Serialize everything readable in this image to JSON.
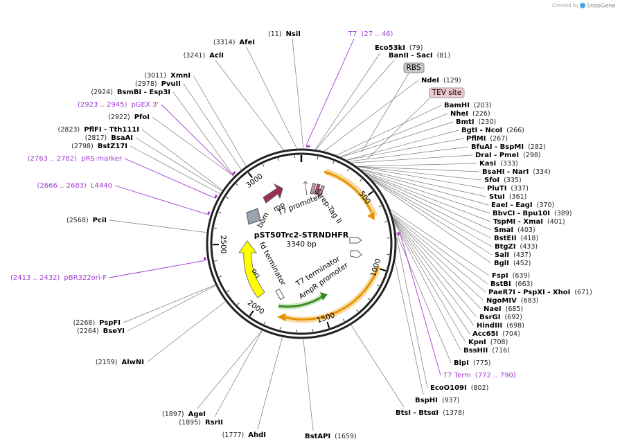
{
  "watermark": {
    "prefix": "Created by",
    "brand": "SnapGene"
  },
  "map": {
    "name": "pST50Trc2-STRNDHFR",
    "size_label": "3340 bp",
    "length": 3340,
    "ring_ticks": [
      500,
      1000,
      1500,
      2000,
      2500,
      3000
    ]
  },
  "boxes": [
    "RBS",
    "TEV site"
  ],
  "features": [
    "T7 promoter",
    "Strep-Tag II",
    "T7 terminator",
    "AmpR promoter",
    "fd terminator",
    "ori",
    "bom",
    "rop"
  ],
  "primers": [
    {
      "name": "T7",
      "label": "(27 .. 46)",
      "start": 27,
      "end": 46
    },
    {
      "name": "T7 Term",
      "label": "(772 .. 790)",
      "start": 772,
      "end": 790
    },
    {
      "name": "pGEX 3'",
      "label": "(2923 .. 2945)",
      "start": 2923,
      "end": 2945
    },
    {
      "name": "pRS-marker",
      "label": "(2763 .. 2782)",
      "start": 2763,
      "end": 2782
    },
    {
      "name": "L4440",
      "label": "(2666 .. 2683)",
      "start": 2666,
      "end": 2683
    },
    {
      "name": "pBR322ori-F",
      "label": "(2413 .. 2432)",
      "start": 2413,
      "end": 2432
    }
  ],
  "enzymes": [
    {
      "name": "NsiI",
      "label": "(11)",
      "site": 11
    },
    {
      "name": "AfeI",
      "label": "(3314)",
      "site": 3314
    },
    {
      "name": "AclI",
      "label": "(3241)",
      "site": 3241
    },
    {
      "name": "XmnI",
      "label": "(3011)",
      "site": 3011
    },
    {
      "name": "PvuII",
      "label": "(2978)",
      "site": 2978
    },
    {
      "name": "BsmBI - Esp3I",
      "label": "(2924)",
      "site": 2924
    },
    {
      "name": "PfoI",
      "label": "(2922)",
      "site": 2922
    },
    {
      "name": "PflFI - Tth111I",
      "label": "(2823)",
      "site": 2823
    },
    {
      "name": "BsaAI",
      "label": "(2817)",
      "site": 2817
    },
    {
      "name": "BstZ17I",
      "label": "(2798)",
      "site": 2798
    },
    {
      "name": "PciI",
      "label": "(2568)",
      "site": 2568
    },
    {
      "name": "PspFI",
      "label": "(2268)",
      "site": 2268
    },
    {
      "name": "BseYI",
      "label": "(2264)",
      "site": 2264
    },
    {
      "name": "AlwNI",
      "label": "(2159)",
      "site": 2159
    },
    {
      "name": "AgeI",
      "label": "(1897)",
      "site": 1897
    },
    {
      "name": "RsrII",
      "label": "(1895)",
      "site": 1895
    },
    {
      "name": "AhdI",
      "label": "(1777)",
      "site": 1777
    },
    {
      "name": "BstAPI",
      "label": "(1659)",
      "site": 1659
    },
    {
      "name": "Eco53kI",
      "label": "(79)",
      "site": 79
    },
    {
      "name": "BanII - SacI",
      "label": "(81)",
      "site": 81
    },
    {
      "name": "NdeI",
      "label": "(129)",
      "site": 129
    },
    {
      "name": "BamHI",
      "label": "(203)",
      "site": 203
    },
    {
      "name": "NheI",
      "label": "(226)",
      "site": 226
    },
    {
      "name": "BmtI",
      "label": "(230)",
      "site": 230
    },
    {
      "name": "BgtI - NcoI",
      "label": "(266)",
      "site": 266
    },
    {
      "name": "PflMI",
      "label": "(267)",
      "site": 267
    },
    {
      "name": "BfuAI - BspMI",
      "label": "(282)",
      "site": 282
    },
    {
      "name": "DraI - PmeI",
      "label": "(298)",
      "site": 298
    },
    {
      "name": "KasI",
      "label": "(333)",
      "site": 333
    },
    {
      "name": "BsaHI - NarI",
      "label": "(334)",
      "site": 334
    },
    {
      "name": "SfoI",
      "label": "(335)",
      "site": 335
    },
    {
      "name": "PluTI",
      "label": "(337)",
      "site": 337
    },
    {
      "name": "StuI",
      "label": "(361)",
      "site": 361
    },
    {
      "name": "EaeI - EagI",
      "label": "(370)",
      "site": 370
    },
    {
      "name": "BbvCI - Bpu10I",
      "label": "(389)",
      "site": 389
    },
    {
      "name": "TspMI - XmaI",
      "label": "(401)",
      "site": 401
    },
    {
      "name": "SmaI",
      "label": "(403)",
      "site": 403
    },
    {
      "name": "BstEII",
      "label": "(418)",
      "site": 418
    },
    {
      "name": "BtgZI",
      "label": "(433)",
      "site": 433
    },
    {
      "name": "SalI",
      "label": "(437)",
      "site": 437
    },
    {
      "name": "BglI",
      "label": "(452)",
      "site": 452
    },
    {
      "name": "FspI",
      "label": "(639)",
      "site": 639
    },
    {
      "name": "BstBI",
      "label": "(663)",
      "site": 663
    },
    {
      "name": "PaeR7I - PspXI - XhoI",
      "label": "(671)",
      "site": 671
    },
    {
      "name": "NgoMIV",
      "label": "(683)",
      "site": 683
    },
    {
      "name": "NaeI",
      "label": "(685)",
      "site": 685
    },
    {
      "name": "BsrGI",
      "label": "(692)",
      "site": 692
    },
    {
      "name": "HindIII",
      "label": "(698)",
      "site": 698
    },
    {
      "name": "Acc65I",
      "label": "(704)",
      "site": 704
    },
    {
      "name": "KpnI",
      "label": "(708)",
      "site": 708
    },
    {
      "name": "BssHII",
      "label": "(716)",
      "site": 716
    },
    {
      "name": "BlpI",
      "label": "(775)",
      "site": 775
    },
    {
      "name": "EcoO109I",
      "label": "(802)",
      "site": 802
    },
    {
      "name": "BspHI",
      "label": "(937)",
      "site": 937
    },
    {
      "name": "BtsI - BtsαI",
      "label": "(1378)",
      "site": 1378
    }
  ]
}
